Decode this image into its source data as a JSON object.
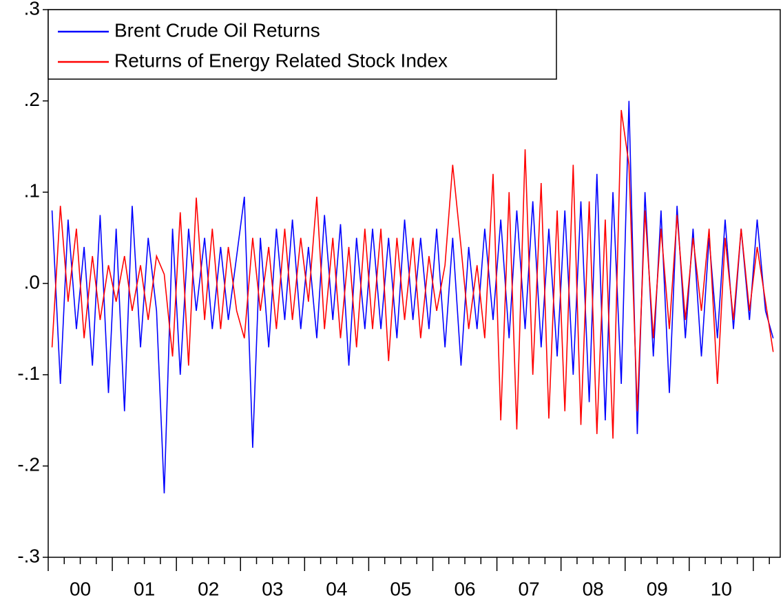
{
  "chart_data": {
    "type": "line",
    "x": [
      2000.06,
      2000.19,
      2000.31,
      2000.44,
      2000.56,
      2000.69,
      2000.81,
      2000.94,
      2001.06,
      2001.19,
      2001.31,
      2001.44,
      2001.56,
      2001.69,
      2001.81,
      2001.94,
      2002.06,
      2002.19,
      2002.31,
      2002.44,
      2002.56,
      2002.69,
      2002.81,
      2002.94,
      2003.06,
      2003.19,
      2003.31,
      2003.44,
      2003.56,
      2003.69,
      2003.81,
      2003.94,
      2004.06,
      2004.19,
      2004.31,
      2004.44,
      2004.56,
      2004.69,
      2004.81,
      2004.94,
      2005.06,
      2005.19,
      2005.31,
      2005.44,
      2005.56,
      2005.69,
      2005.81,
      2005.94,
      2006.06,
      2006.19,
      2006.31,
      2006.44,
      2006.56,
      2006.69,
      2006.81,
      2006.94,
      2007.06,
      2007.19,
      2007.31,
      2007.44,
      2007.56,
      2007.69,
      2007.81,
      2007.94,
      2008.06,
      2008.19,
      2008.31,
      2008.44,
      2008.56,
      2008.69,
      2008.81,
      2008.94,
      2009.06,
      2009.19,
      2009.31,
      2009.44,
      2009.56,
      2009.69,
      2009.81,
      2009.94,
      2010.06,
      2010.19,
      2010.31,
      2010.44,
      2010.56,
      2010.69,
      2010.81,
      2010.94,
      2011.06,
      2011.19,
      2011.31
    ],
    "series": [
      {
        "name": "Brent Crude Oil Returns",
        "color": "#0000ff",
        "values": [
          0.08,
          -0.11,
          0.07,
          -0.05,
          0.04,
          -0.09,
          0.075,
          -0.12,
          0.06,
          -0.14,
          0.085,
          -0.07,
          0.05,
          -0.03,
          -0.23,
          0.06,
          -0.1,
          0.06,
          -0.03,
          0.05,
          -0.05,
          0.04,
          -0.04,
          0.03,
          0.095,
          -0.18,
          0.05,
          -0.07,
          0.06,
          -0.04,
          0.07,
          -0.05,
          0.04,
          -0.06,
          0.075,
          -0.04,
          0.065,
          -0.09,
          0.05,
          -0.05,
          0.06,
          -0.05,
          0.05,
          -0.06,
          0.07,
          -0.04,
          0.05,
          -0.05,
          0.06,
          -0.07,
          0.05,
          -0.09,
          0.04,
          -0.05,
          0.06,
          -0.04,
          0.07,
          -0.06,
          0.08,
          -0.05,
          0.09,
          -0.07,
          0.06,
          -0.08,
          0.08,
          -0.1,
          0.09,
          -0.13,
          0.12,
          -0.15,
          0.1,
          -0.11,
          0.2,
          -0.165,
          0.1,
          -0.08,
          0.08,
          -0.12,
          0.085,
          -0.06,
          0.06,
          -0.08,
          0.05,
          -0.06,
          0.07,
          -0.05,
          0.06,
          -0.04,
          0.07,
          -0.03,
          -0.06
        ]
      },
      {
        "name": "Returns of Energy Related Stock Index",
        "color": "#ff0000",
        "values": [
          -0.07,
          0.085,
          -0.02,
          0.06,
          -0.06,
          0.03,
          -0.04,
          0.02,
          -0.02,
          0.03,
          -0.03,
          0.02,
          -0.04,
          0.03,
          0.01,
          -0.08,
          0.078,
          -0.09,
          0.094,
          -0.04,
          0.06,
          -0.05,
          0.04,
          -0.03,
          -0.06,
          0.05,
          -0.03,
          0.04,
          -0.05,
          0.06,
          -0.04,
          0.05,
          -0.02,
          0.095,
          -0.05,
          0.05,
          -0.06,
          0.04,
          -0.07,
          0.06,
          -0.05,
          0.06,
          -0.085,
          0.05,
          -0.04,
          0.05,
          -0.06,
          0.03,
          -0.03,
          0.02,
          0.13,
          0.04,
          -0.05,
          0.02,
          -0.06,
          0.12,
          -0.15,
          0.1,
          -0.16,
          0.147,
          -0.1,
          0.11,
          -0.148,
          0.08,
          -0.14,
          0.13,
          -0.155,
          0.09,
          -0.165,
          0.07,
          -0.17,
          0.19,
          0.13,
          -0.14,
          0.08,
          -0.06,
          0.06,
          -0.05,
          0.075,
          -0.04,
          0.05,
          -0.03,
          0.06,
          -0.11,
          0.05,
          -0.04,
          0.06,
          -0.03,
          0.04,
          -0.02,
          -0.075
        ]
      }
    ],
    "xlim": [
      2000,
      2011.42
    ],
    "xticks": [
      {
        "value": 2000.5,
        "label": "00"
      },
      {
        "value": 2001.5,
        "label": "01"
      },
      {
        "value": 2002.5,
        "label": "02"
      },
      {
        "value": 2003.5,
        "label": "03"
      },
      {
        "value": 2004.5,
        "label": "04"
      },
      {
        "value": 2005.5,
        "label": "05"
      },
      {
        "value": 2006.5,
        "label": "06"
      },
      {
        "value": 2007.5,
        "label": "07"
      },
      {
        "value": 2008.5,
        "label": "08"
      },
      {
        "value": 2009.5,
        "label": "09"
      },
      {
        "value": 2010.5,
        "label": "10"
      }
    ],
    "ylim": [
      -0.3,
      0.3
    ],
    "yticks": [
      {
        "value": -0.3,
        "label": "-.3"
      },
      {
        "value": -0.2,
        "label": "-.2"
      },
      {
        "value": -0.1,
        "label": "-.1"
      },
      {
        "value": 0,
        "label": ".0"
      },
      {
        "value": 0.1,
        "label": ".1"
      },
      {
        "value": 0.2,
        "label": ".2"
      },
      {
        "value": 0.3,
        "label": ".3"
      }
    ],
    "grid": false,
    "legend": "upper left"
  }
}
